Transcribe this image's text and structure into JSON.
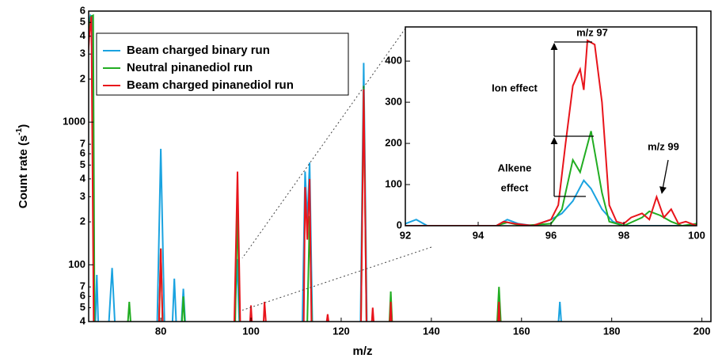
{
  "chart_data": [
    {
      "type": "line",
      "log_y": true,
      "xlabel": "m/z",
      "ylabel": {
        "text": "Count rate  (s",
        "sup": "-1",
        "end": ")"
      },
      "xlim": [
        64,
        202
      ],
      "ylim": [
        40,
        6000
      ],
      "xticks": [
        80,
        100,
        120,
        140,
        160,
        180,
        200
      ],
      "yticks": [
        {
          "value": 40,
          "label": "4"
        },
        {
          "value": 50,
          "label": "5"
        },
        {
          "value": 60,
          "label": "6"
        },
        {
          "value": 70,
          "label": "7"
        },
        100,
        {
          "value": 200,
          "label": "2"
        },
        {
          "value": 300,
          "label": "3"
        },
        {
          "value": 400,
          "label": "4"
        },
        {
          "value": 500,
          "label": "5"
        },
        {
          "value": 600,
          "label": "6"
        },
        {
          "value": 700,
          "label": "7"
        },
        1000,
        {
          "value": 2000,
          "label": "2"
        },
        {
          "value": 3000,
          "label": "3"
        },
        {
          "value": 4000,
          "label": "4"
        },
        {
          "value": 5000,
          "label": "5"
        },
        {
          "value": 6000,
          "label": "6"
        }
      ],
      "legend": "top-left",
      "series": [
        {
          "name": "Beam charged binary run",
          "color": "#1aa3e0",
          "x": [
            64,
            64.4,
            64.8,
            65.3,
            null,
            65.5,
            65.8,
            66.1,
            null,
            68.5,
            69.2,
            69.8,
            null,
            79.2,
            80,
            80.8,
            null,
            82.6,
            83,
            83.4,
            null,
            84.6,
            85,
            85.4,
            null,
            96.4,
            96.9,
            97.4,
            null,
            111.4,
            112,
            112.5,
            113,
            113.6,
            null,
            124.3,
            125,
            125.7,
            null,
            168.2,
            168.5,
            168.8
          ],
          "values": [
            5000,
            5600,
            5400,
            40,
            null,
            40,
            85,
            40,
            null,
            40,
            95,
            40,
            null,
            40,
            650,
            40,
            null,
            40,
            80,
            40,
            null,
            40,
            68,
            40,
            null,
            40,
            110,
            40,
            null,
            40,
            450,
            200,
            520,
            40,
            null,
            40,
            2600,
            40,
            null,
            40,
            55,
            40
          ]
        },
        {
          "name": "Neutral pinanediol run",
          "color": "#22ad22",
          "x": [
            64.1,
            64.5,
            65,
            65.3,
            null,
            72.7,
            73,
            73.3,
            null,
            79.6,
            80,
            80.4,
            null,
            84.7,
            85,
            85.3,
            null,
            96.5,
            97,
            97.5,
            null,
            112.5,
            113,
            113.5,
            null,
            124.4,
            125,
            125.6,
            null,
            130.7,
            131,
            131.3,
            null,
            154.6,
            155,
            155.4
          ],
          "values": [
            4500,
            5500,
            5600,
            40,
            null,
            40,
            55,
            40,
            null,
            40,
            130,
            40,
            null,
            40,
            60,
            40,
            null,
            40,
            250,
            40,
            null,
            40,
            220,
            40,
            null,
            40,
            1800,
            40,
            null,
            40,
            65,
            40,
            null,
            40,
            70,
            40
          ]
        },
        {
          "name": "Beam charged pinanediol run",
          "color": "#e8141b",
          "x": [
            63.9,
            64.2,
            64.6,
            65.1,
            null,
            79.6,
            80,
            80.4,
            null,
            96.3,
            97,
            97.6,
            null,
            99.8,
            100,
            100.2,
            null,
            102.8,
            103,
            103.3,
            null,
            111.7,
            112,
            112.5,
            113,
            113.4,
            null,
            116.8,
            117,
            117.2,
            null,
            124.4,
            125,
            125.6,
            null,
            126.8,
            127,
            127.2,
            null,
            130.8,
            131,
            131.2,
            null,
            154.8,
            155,
            155.2
          ],
          "values": [
            3000,
            4200,
            5500,
            40,
            null,
            40,
            130,
            40,
            null,
            40,
            450,
            40,
            null,
            40,
            52,
            40,
            null,
            40,
            55,
            40,
            null,
            40,
            350,
            150,
            400,
            40,
            null,
            40,
            45,
            40,
            null,
            40,
            1700,
            40,
            null,
            40,
            50,
            40,
            null,
            40,
            55,
            40,
            null,
            40,
            55,
            40
          ]
        }
      ]
    },
    {
      "type": "line",
      "log_y": false,
      "xlim": [
        92,
        100
      ],
      "ylim": [
        0,
        483
      ],
      "xticks": [
        92,
        94,
        96,
        98,
        100
      ],
      "yticks": [
        0,
        100,
        200,
        300,
        400
      ],
      "annotations": [
        "m/z 97",
        "Ion   effect",
        "Alkene",
        "effect",
        "m/z 99"
      ],
      "series": [
        {
          "name": "Beam charged binary run",
          "color": "#1aa3e0",
          "x": [
            92,
            92.3,
            92.6,
            94.5,
            94.8,
            95.1,
            95.5,
            96,
            96.3,
            96.6,
            96.9,
            97.1,
            97.4,
            97.7,
            98,
            100
          ],
          "values": [
            5,
            15,
            0,
            0,
            15,
            5,
            0,
            15,
            30,
            60,
            110,
            90,
            40,
            10,
            0,
            0
          ]
        },
        {
          "name": "Neutral pinanediol run",
          "color": "#22ad22",
          "x": [
            92,
            94.5,
            94.8,
            95.2,
            96,
            96.3,
            96.6,
            96.8,
            97.1,
            97.4,
            97.6,
            98,
            98.5,
            98.7,
            99,
            99.3,
            99.6,
            100
          ],
          "values": [
            0,
            0,
            8,
            0,
            5,
            40,
            160,
            130,
            230,
            80,
            10,
            0,
            20,
            35,
            25,
            10,
            0,
            5
          ]
        },
        {
          "name": "Beam charged pinanediol run",
          "color": "#e8141b",
          "x": [
            92,
            94.5,
            94.7,
            95,
            95.5,
            96,
            96.2,
            96.4,
            96.6,
            96.8,
            96.9,
            97,
            97.2,
            97.4,
            97.6,
            97.8,
            98,
            98.2,
            98.5,
            98.7,
            98.9,
            99.1,
            99.3,
            99.5,
            99.7,
            100
          ],
          "values": [
            0,
            0,
            10,
            5,
            0,
            15,
            50,
            200,
            340,
            380,
            330,
            450,
            440,
            300,
            50,
            10,
            5,
            20,
            30,
            15,
            70,
            20,
            40,
            5,
            10,
            0
          ]
        }
      ]
    }
  ]
}
